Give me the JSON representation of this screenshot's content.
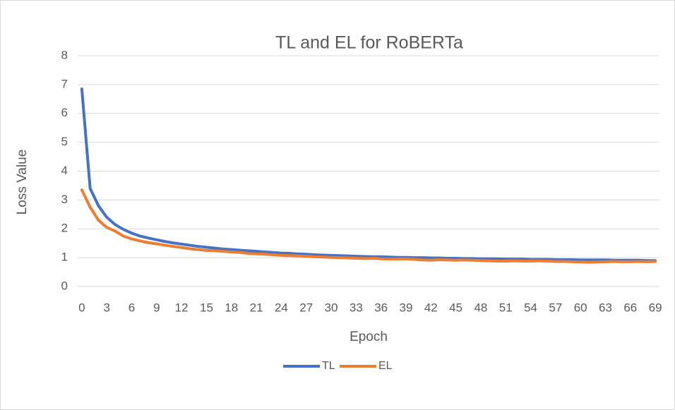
{
  "chart_data": {
    "type": "line",
    "title": "TL and EL for RoBERTa",
    "x_label": "Epoch",
    "y_label": "Loss Value",
    "x": [
      0,
      1,
      2,
      3,
      4,
      5,
      6,
      7,
      8,
      9,
      10,
      11,
      12,
      13,
      14,
      15,
      16,
      17,
      18,
      19,
      20,
      21,
      22,
      23,
      24,
      25,
      26,
      27,
      28,
      29,
      30,
      31,
      32,
      33,
      34,
      35,
      36,
      37,
      38,
      39,
      40,
      41,
      42,
      43,
      44,
      45,
      46,
      47,
      48,
      49,
      50,
      51,
      52,
      53,
      54,
      55,
      56,
      57,
      58,
      59,
      60,
      61,
      62,
      63,
      64,
      65,
      66,
      67,
      68,
      69
    ],
    "xlim": [
      -0.5,
      69.5
    ],
    "xticks": [
      0,
      3,
      6,
      9,
      12,
      15,
      18,
      21,
      24,
      27,
      30,
      33,
      36,
      39,
      42,
      45,
      48,
      51,
      54,
      57,
      60,
      63,
      66,
      69
    ],
    "ylim": [
      0,
      8
    ],
    "yticks": [
      0,
      1,
      2,
      3,
      4,
      5,
      6,
      7,
      8
    ],
    "grid": true,
    "legend": "bottom",
    "series": [
      {
        "name": "TL",
        "color": "#4472c4",
        "values": [
          6.85,
          3.4,
          2.8,
          2.4,
          2.15,
          1.98,
          1.85,
          1.75,
          1.68,
          1.62,
          1.56,
          1.51,
          1.47,
          1.43,
          1.39,
          1.36,
          1.33,
          1.3,
          1.28,
          1.26,
          1.24,
          1.22,
          1.2,
          1.18,
          1.16,
          1.15,
          1.13,
          1.12,
          1.1,
          1.09,
          1.08,
          1.07,
          1.06,
          1.05,
          1.04,
          1.03,
          1.03,
          1.02,
          1.01,
          1.01,
          1.0,
          1.0,
          0.99,
          0.99,
          0.98,
          0.98,
          0.97,
          0.97,
          0.96,
          0.96,
          0.96,
          0.95,
          0.95,
          0.95,
          0.94,
          0.94,
          0.94,
          0.93,
          0.93,
          0.93,
          0.92,
          0.92,
          0.92,
          0.92,
          0.91,
          0.91,
          0.91,
          0.91,
          0.9,
          0.9
        ]
      },
      {
        "name": "EL",
        "color": "#ed7d31",
        "values": [
          3.35,
          2.75,
          2.3,
          2.05,
          1.92,
          1.75,
          1.65,
          1.58,
          1.52,
          1.48,
          1.43,
          1.39,
          1.35,
          1.31,
          1.28,
          1.25,
          1.24,
          1.22,
          1.2,
          1.18,
          1.15,
          1.13,
          1.12,
          1.1,
          1.08,
          1.07,
          1.06,
          1.05,
          1.03,
          1.02,
          1.01,
          1.0,
          0.99,
          0.98,
          0.97,
          0.98,
          0.96,
          0.95,
          0.95,
          0.96,
          0.94,
          0.92,
          0.91,
          0.93,
          0.92,
          0.91,
          0.92,
          0.91,
          0.9,
          0.89,
          0.88,
          0.88,
          0.89,
          0.88,
          0.88,
          0.89,
          0.88,
          0.87,
          0.87,
          0.86,
          0.85,
          0.84,
          0.85,
          0.86,
          0.87,
          0.86,
          0.86,
          0.87,
          0.86,
          0.87
        ]
      }
    ]
  }
}
